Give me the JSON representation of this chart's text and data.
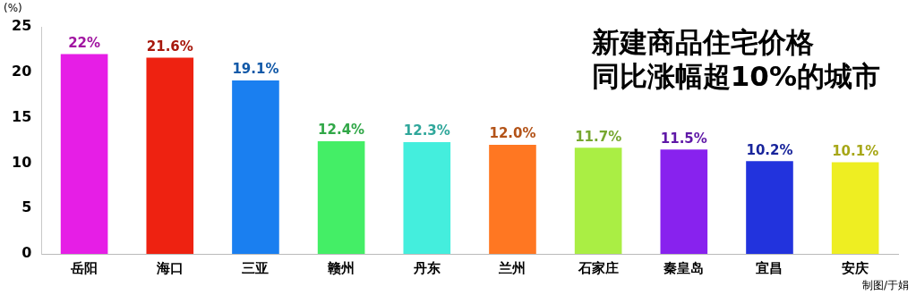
{
  "chart_data": {
    "type": "bar",
    "title": "新建商品住宅价格",
    "subtitle": "同比涨幅超10%的城市",
    "ylabel": "(%)",
    "categories": [
      "岳阳",
      "海口",
      "三亚",
      "赣州",
      "丹东",
      "兰州",
      "石家庄",
      "秦皇岛",
      "宜昌",
      "安庆"
    ],
    "values": [
      22,
      21.6,
      19.1,
      12.4,
      12.3,
      12.0,
      11.7,
      11.5,
      10.2,
      10.1
    ],
    "value_labels": [
      "22%",
      "21.6%",
      "19.1%",
      "12.4%",
      "12.3%",
      "12.0%",
      "11.7%",
      "11.5%",
      "10.2%",
      "10.1%"
    ],
    "colors": [
      "#e61ee6",
      "#ee2211",
      "#1a7ff0",
      "#44ee66",
      "#44eedd",
      "#ff7722",
      "#aaee44",
      "#8822ee",
      "#2233dd",
      "#eeee22"
    ],
    "ylim": [
      0,
      25
    ],
    "yticks": [
      0,
      5,
      10,
      15,
      20,
      25
    ],
    "grid": false,
    "legend": false,
    "annotations": [
      "制图/于娟"
    ]
  }
}
